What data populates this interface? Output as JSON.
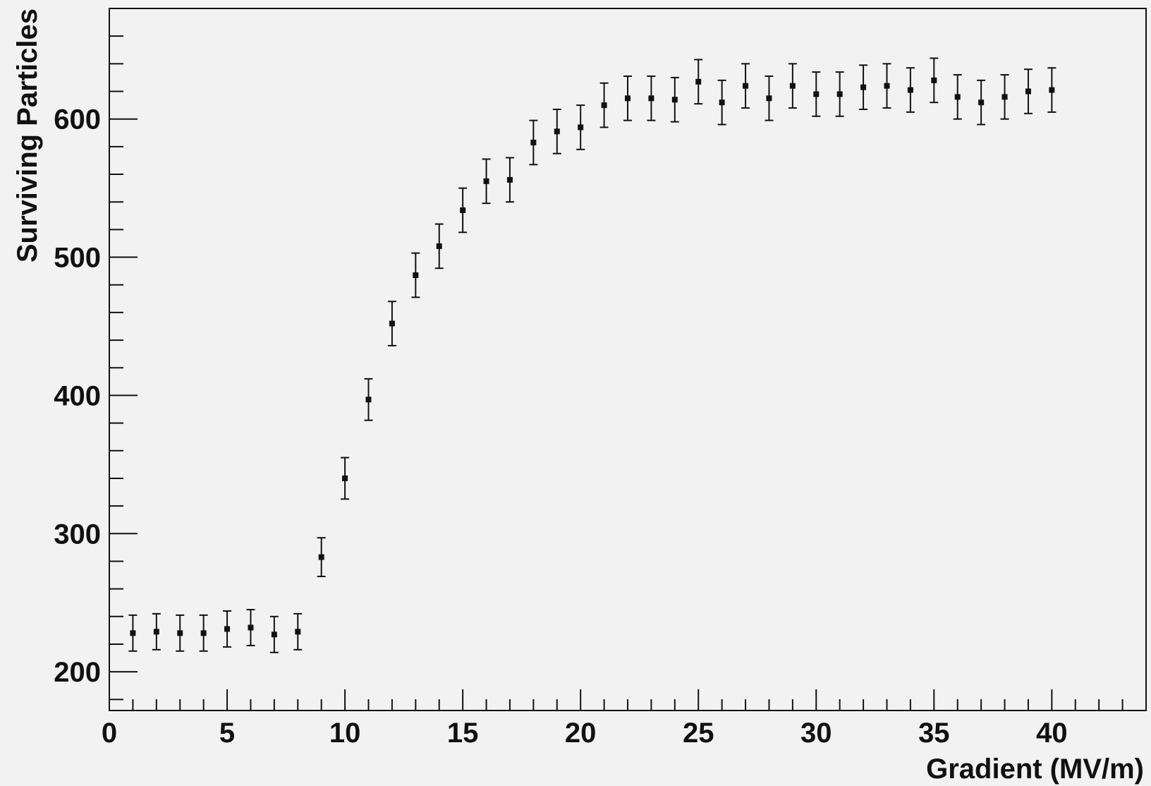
{
  "chart_data": {
    "type": "scatter",
    "title": "",
    "xlabel": "Gradient (MV/m)",
    "ylabel": "Surviving Particles",
    "xlim": [
      0,
      44
    ],
    "ylim": [
      172,
      680
    ],
    "x_ticks_major": [
      0,
      5,
      10,
      15,
      20,
      25,
      30,
      35,
      40
    ],
    "x_tick_labels": [
      "0",
      "5",
      "10",
      "15",
      "20",
      "25",
      "30",
      "35",
      "40"
    ],
    "y_ticks_major": [
      200,
      300,
      400,
      500,
      600
    ],
    "y_tick_labels": [
      "200",
      "300",
      "400",
      "500",
      "600"
    ],
    "grid": false,
    "legend": "none",
    "colors": {
      "background": "#f2f2f2",
      "marker": "#111111",
      "axes": "#111111"
    },
    "series": [
      {
        "marker": "square",
        "error_bars": true,
        "points": [
          {
            "x": 1,
            "y": 228,
            "err": 13
          },
          {
            "x": 2,
            "y": 229,
            "err": 13
          },
          {
            "x": 3,
            "y": 228,
            "err": 13
          },
          {
            "x": 4,
            "y": 228,
            "err": 13
          },
          {
            "x": 5,
            "y": 231,
            "err": 13
          },
          {
            "x": 6,
            "y": 232,
            "err": 13
          },
          {
            "x": 7,
            "y": 227,
            "err": 13
          },
          {
            "x": 8,
            "y": 229,
            "err": 13
          },
          {
            "x": 9,
            "y": 283,
            "err": 14
          },
          {
            "x": 10,
            "y": 340,
            "err": 15
          },
          {
            "x": 11,
            "y": 397,
            "err": 15
          },
          {
            "x": 12,
            "y": 452,
            "err": 16
          },
          {
            "x": 13,
            "y": 487,
            "err": 16
          },
          {
            "x": 14,
            "y": 508,
            "err": 16
          },
          {
            "x": 15,
            "y": 534,
            "err": 16
          },
          {
            "x": 16,
            "y": 555,
            "err": 16
          },
          {
            "x": 17,
            "y": 556,
            "err": 16
          },
          {
            "x": 18,
            "y": 583,
            "err": 16
          },
          {
            "x": 19,
            "y": 591,
            "err": 16
          },
          {
            "x": 20,
            "y": 594,
            "err": 16
          },
          {
            "x": 21,
            "y": 610,
            "err": 16
          },
          {
            "x": 22,
            "y": 615,
            "err": 16
          },
          {
            "x": 23,
            "y": 615,
            "err": 16
          },
          {
            "x": 24,
            "y": 614,
            "err": 16
          },
          {
            "x": 25,
            "y": 627,
            "err": 16
          },
          {
            "x": 26,
            "y": 612,
            "err": 16
          },
          {
            "x": 27,
            "y": 624,
            "err": 16
          },
          {
            "x": 28,
            "y": 615,
            "err": 16
          },
          {
            "x": 29,
            "y": 624,
            "err": 16
          },
          {
            "x": 30,
            "y": 618,
            "err": 16
          },
          {
            "x": 31,
            "y": 618,
            "err": 16
          },
          {
            "x": 32,
            "y": 623,
            "err": 16
          },
          {
            "x": 33,
            "y": 624,
            "err": 16
          },
          {
            "x": 34,
            "y": 621,
            "err": 16
          },
          {
            "x": 35,
            "y": 628,
            "err": 16
          },
          {
            "x": 36,
            "y": 616,
            "err": 16
          },
          {
            "x": 37,
            "y": 612,
            "err": 16
          },
          {
            "x": 38,
            "y": 616,
            "err": 16
          },
          {
            "x": 39,
            "y": 620,
            "err": 16
          },
          {
            "x": 40,
            "y": 621,
            "err": 16
          }
        ]
      }
    ]
  }
}
